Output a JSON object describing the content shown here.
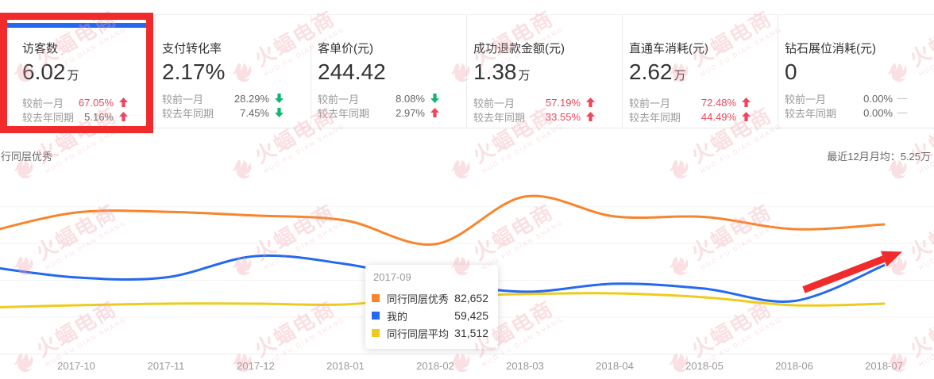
{
  "watermark": {
    "cn": "火蝠电商",
    "en": "HUO FU DIAN SHANG"
  },
  "colors": {
    "selected_card_bar": "#2468f2",
    "kpi_up_red": "#f0455a",
    "kpi_down_green": "#12b673",
    "annotation_red": "#f12b2b",
    "series_excellent": "#f8842c",
    "series_mine": "#2469f0",
    "series_average": "#eecb1e"
  },
  "kpi_cards": [
    {
      "title": "访客数",
      "value": "6.02",
      "suffix": "万",
      "selected": true,
      "rows": [
        {
          "label": "较前一月",
          "value": "67.05%",
          "value_color": "red",
          "arrow": "up"
        },
        {
          "label": "较去年同期",
          "value": "5.16%",
          "value_color": "gray",
          "arrow": "up"
        }
      ]
    },
    {
      "title": "支付转化率",
      "value": "2.17%",
      "suffix": "",
      "selected": false,
      "rows": [
        {
          "label": "较前一月",
          "value": "28.29%",
          "value_color": "gray",
          "arrow": "down"
        },
        {
          "label": "较去年同期",
          "value": "7.45%",
          "value_color": "gray",
          "arrow": "down"
        }
      ]
    },
    {
      "title": "客单价(元)",
      "value": "244.42",
      "suffix": "",
      "selected": false,
      "rows": [
        {
          "label": "较前一月",
          "value": "8.08%",
          "value_color": "gray",
          "arrow": "down"
        },
        {
          "label": "较去年同期",
          "value": "2.97%",
          "value_color": "gray",
          "arrow": "up"
        }
      ]
    },
    {
      "title": "成功退款金额(元)",
      "value": "1.38",
      "suffix": "万",
      "selected": false,
      "rows": [
        {
          "label": "较前一月",
          "value": "57.19%",
          "value_color": "red",
          "arrow": "up"
        },
        {
          "label": "较去年同期",
          "value": "33.55%",
          "value_color": "red",
          "arrow": "up"
        }
      ]
    },
    {
      "title": "直通车消耗(元)",
      "value": "2.62",
      "suffix": "万",
      "selected": false,
      "rows": [
        {
          "label": "较前一月",
          "value": "72.48%",
          "value_color": "red",
          "arrow": "up"
        },
        {
          "label": "较去年同期",
          "value": "44.49%",
          "value_color": "red",
          "arrow": "up"
        }
      ]
    },
    {
      "title": "钻石展位消耗(元)",
      "value": "0",
      "suffix": "",
      "selected": false,
      "rows": [
        {
          "label": "较前一月",
          "value": "0.00%",
          "value_color": "gray",
          "arrow": "dash"
        },
        {
          "label": "较去年同期",
          "value": "0.00%",
          "value_color": "gray",
          "arrow": "dash"
        }
      ]
    }
  ],
  "chart_header": {
    "left_label": "行同层优秀",
    "right_label": "最近12月月均：5.25万"
  },
  "tooltip": {
    "title": "2017-09",
    "rows": [
      {
        "label": "同行同层优秀",
        "value": "82,652",
        "color": "#f8842c"
      },
      {
        "label": "我的",
        "value": "59,425",
        "color": "#2469f0"
      },
      {
        "label": "同行同层平均",
        "value": "31,512",
        "color": "#eecb1e"
      }
    ]
  },
  "chart_data": {
    "type": "line",
    "x": [
      "2017-09",
      "2017-10",
      "2017-11",
      "2017-12",
      "2018-01",
      "2018-02",
      "2018-03",
      "2018-04",
      "2018-05",
      "2018-06",
      "2018-07"
    ],
    "series": [
      {
        "name": "同行同层优秀",
        "color": "#f8842c",
        "values": [
          82652,
          96100,
          96600,
          94000,
          90700,
          74600,
          106900,
          93400,
          93100,
          84800,
          88000
        ]
      },
      {
        "name": "我的",
        "color": "#2469f0",
        "values": [
          59425,
          52000,
          52000,
          66500,
          61100,
          49300,
          42300,
          47700,
          44400,
          36000,
          60200
        ]
      },
      {
        "name": "同行同层平均",
        "color": "#eecb1e",
        "values": [
          31512,
          33100,
          34200,
          34200,
          33700,
          39000,
          40700,
          41200,
          38500,
          33100,
          34200
        ]
      }
    ],
    "ylim": [
      0,
      120000
    ],
    "grid": true,
    "legend": "shown-in-tooltip-only",
    "note": "tooltip anchor month 2017-09: 82,652 / 59,425 / 31,512; other values estimated from curve"
  },
  "annotations": {
    "highlight_box_target": "访客数 KPI card",
    "trend_arrow": "up-right over 2018-06 to 2018-07",
    "color": "#f12b2b"
  }
}
